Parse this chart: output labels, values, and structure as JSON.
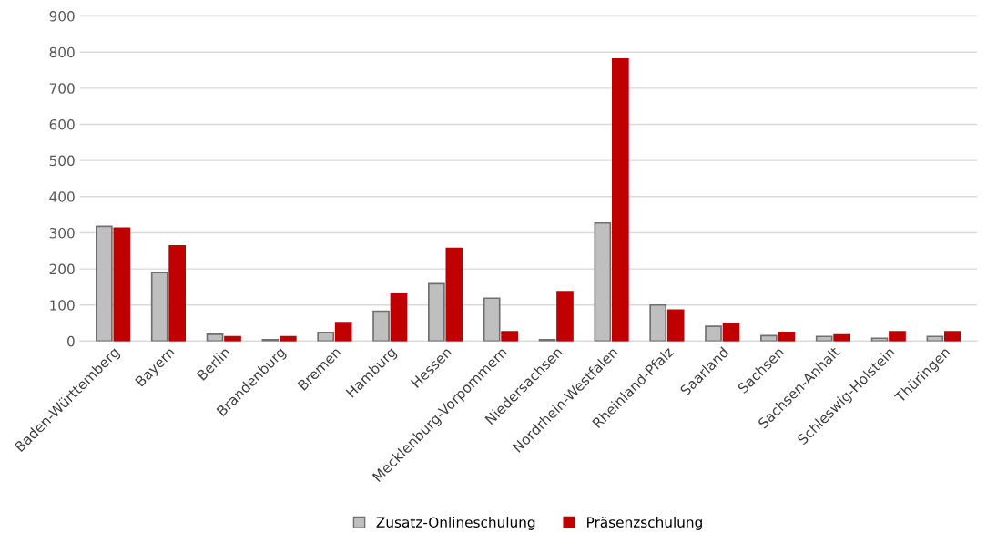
{
  "chart_data": {
    "type": "bar",
    "categories": [
      "Baden-Württemberg",
      "Bayern",
      "Berlin",
      "Brandenburg",
      "Bremen",
      "Hamburg",
      "Hessen",
      "Mecklenburg-Vorpommern",
      "Niedersachsen",
      "Nordrhein-Westfalen",
      "Rheinland-Pfalz",
      "Saarland",
      "Sachsen",
      "Sachsen-Anhalt",
      "Schleswig-Holstein",
      "Thüringen"
    ],
    "series": [
      {
        "name": "Zusatz-Onlineschulung",
        "color": "#bfbfbf",
        "values": [
          318,
          190,
          19,
          4,
          24,
          83,
          159,
          119,
          4,
          327,
          100,
          41,
          15,
          13,
          8,
          13
        ]
      },
      {
        "name": "Präsenzschulung",
        "color": "#c00000",
        "values": [
          313,
          264,
          12,
          12,
          51,
          130,
          257,
          26,
          137,
          781,
          86,
          49,
          24,
          17,
          26,
          26
        ]
      }
    ],
    "ylim": [
      0,
      900
    ],
    "yticks": [
      0,
      100,
      200,
      300,
      400,
      500,
      600,
      700,
      800,
      900
    ],
    "grid": "y",
    "legend": "bottom"
  }
}
